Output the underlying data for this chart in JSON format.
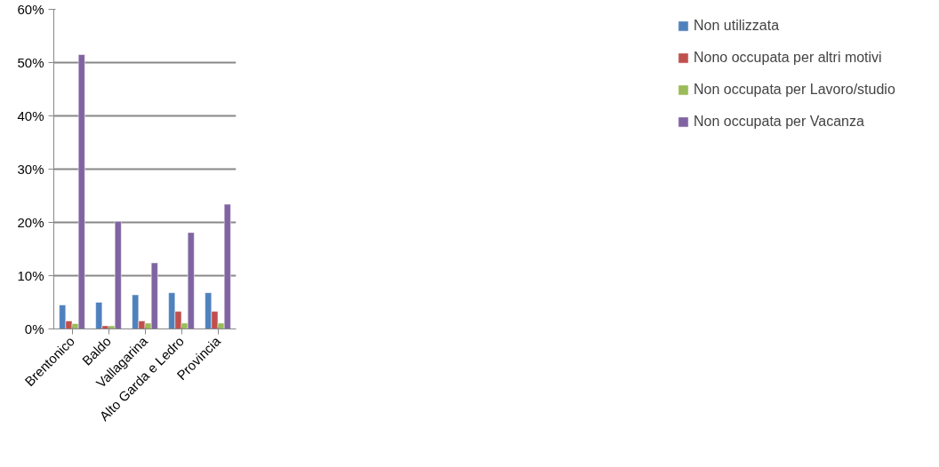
{
  "chart_data": {
    "type": "bar",
    "categories": [
      "Brentonico",
      "Baldo",
      "Vallagarina",
      "Alto Garda e Ledro",
      "Provincia"
    ],
    "series": [
      {
        "name": "Non utilizzata",
        "color": "#4f81bd",
        "values": [
          0.045,
          0.05,
          0.064,
          0.068,
          0.068
        ]
      },
      {
        "name": "Nono occupata per altri motivi",
        "color": "#c0504d",
        "values": [
          0.015,
          0.006,
          0.015,
          0.033,
          0.033
        ]
      },
      {
        "name": "Non occupata per Lavoro/studio",
        "color": "#9bbb59",
        "values": [
          0.01,
          0.006,
          0.011,
          0.011,
          0.011
        ]
      },
      {
        "name": "Non occupata per Vacanza",
        "color": "#8064a2",
        "values": [
          0.515,
          0.202,
          0.124,
          0.181,
          0.234
        ]
      }
    ],
    "ylim": [
      0,
      0.6
    ],
    "yticks": [
      {
        "value": 0,
        "label": "0%"
      },
      {
        "value": 0.1,
        "label": "10%"
      },
      {
        "value": 0.2,
        "label": "20%"
      },
      {
        "value": 0.3,
        "label": "30%"
      },
      {
        "value": 0.4,
        "label": "40%"
      },
      {
        "value": 0.5,
        "label": "50%"
      },
      {
        "value": 0.6,
        "label": "60%"
      }
    ],
    "grid": "y",
    "legend": "right"
  }
}
